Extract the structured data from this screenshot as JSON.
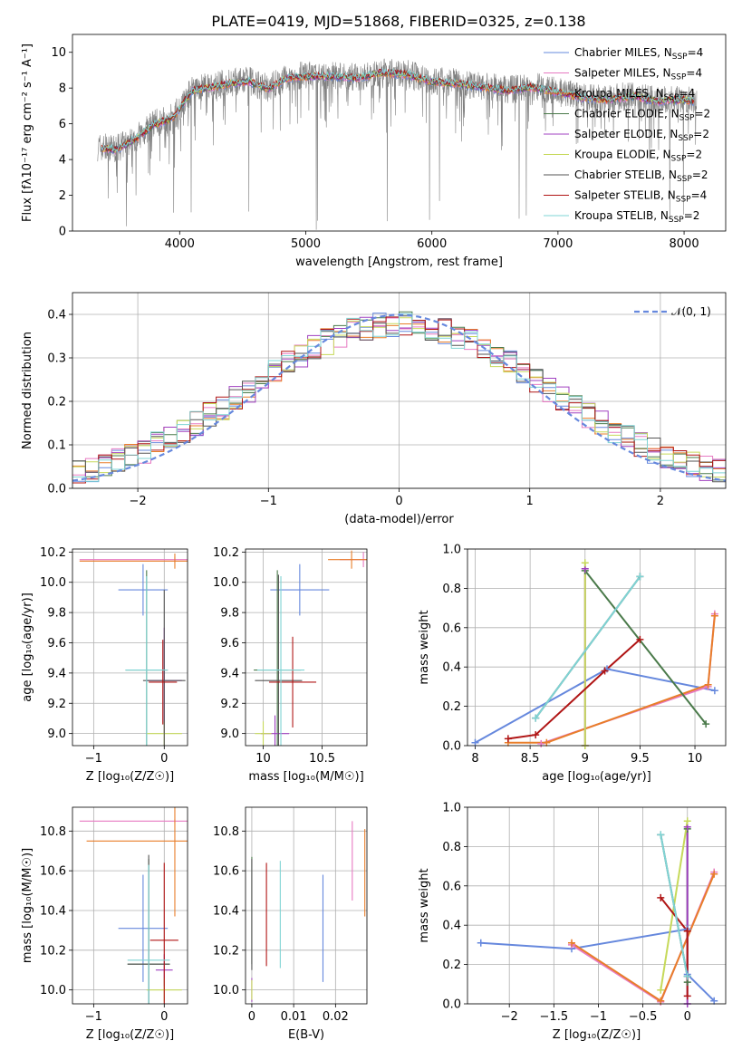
{
  "figure": {
    "title": "PLATE=0419, MJD=51868, FIBERID=0325, z=0.138"
  },
  "legend_entries": [
    {
      "label": "Chabrier MILES, N_SSP=4",
      "color": "#6688dd"
    },
    {
      "label": "Salpeter MILES, N_SSP=4",
      "color": "#e77ac2"
    },
    {
      "label": "Kroupa MILES, N_SSP=4",
      "color": "#e87e2a"
    },
    {
      "label": "Chabrier ELODIE, N_SSP=2",
      "color": "#4a7a4a"
    },
    {
      "label": "Salpeter ELODIE, N_SSP=2",
      "color": "#a040c0"
    },
    {
      "label": "Kroupa ELODIE, N_SSP=2",
      "color": "#c6d95a"
    },
    {
      "label": "Chabrier STELIB, N_SSP=2",
      "color": "#555555"
    },
    {
      "label": "Salpeter STELIB, N_SSP=4",
      "color": "#b01515"
    },
    {
      "label": "Kroupa STELIB, N_SSP=2",
      "color": "#7fd4d4"
    }
  ],
  "chart_data": [
    {
      "id": "spectrum",
      "type": "line",
      "xlabel": "wavelength [Angstrom, rest frame]",
      "ylabel": "Flux [fλ10⁻¹⁷ erg cm⁻² s⁻¹ A⁻¹]",
      "xlim": [
        3150,
        8330
      ],
      "ylim": [
        0,
        11
      ],
      "xticks": [
        4000,
        5000,
        6000,
        7000,
        8000
      ],
      "yticks": [
        0,
        2,
        4,
        6,
        8,
        10
      ],
      "grid": false,
      "legend_position": "top-right",
      "data_color": "#808080",
      "continuum": {
        "x": [
          3350,
          3500,
          3650,
          3800,
          3950,
          4100,
          4250,
          4400,
          4550,
          4700,
          4850,
          5000,
          5200,
          5400,
          5600,
          5800,
          6000,
          6200,
          6400,
          6600,
          6800,
          7000,
          7200,
          7400,
          7600,
          7800,
          8000,
          8100
        ],
        "y": [
          4.7,
          4.6,
          5.2,
          6.0,
          6.4,
          7.9,
          8.1,
          8.3,
          8.4,
          8.0,
          8.6,
          8.7,
          8.7,
          8.6,
          8.9,
          8.8,
          8.4,
          8.3,
          8.1,
          7.9,
          8.1,
          7.8,
          7.5,
          7.4,
          7.6,
          7.3,
          7.4,
          7.3
        ]
      }
    },
    {
      "id": "residuals",
      "type": "histogram",
      "xlabel": "(data-model)/error",
      "ylabel": "Normed distribution",
      "xlim": [
        -2.5,
        2.5
      ],
      "ylim": [
        0,
        0.45
      ],
      "xticks": [
        -2,
        -1,
        0,
        1,
        2
      ],
      "yticks": [
        0.0,
        0.1,
        0.2,
        0.3,
        0.4
      ],
      "grid": true,
      "legend": [
        {
          "label": "𝒩(0, 1)",
          "color": "#6688dd",
          "style": "dashed"
        }
      ],
      "legend_position": "top-right",
      "bin_width": 0.1
    },
    {
      "id": "age_vs_Z",
      "type": "errorbar",
      "xlabel": "Z [log₁₀(Z/Z☉)]",
      "ylabel": "age  [log₁₀(age/yr)]",
      "xlim": [
        -1.3,
        0.33
      ],
      "ylim": [
        8.92,
        10.22
      ],
      "xticks": [
        -1,
        0
      ],
      "yticks": [
        9.0,
        9.2,
        9.4,
        9.6,
        9.8,
        10.0,
        10.2
      ],
      "grid": true,
      "points": [
        {
          "model": 0,
          "x": -0.3,
          "xerr": 0.35,
          "y": 9.95,
          "yerr": 0.17
        },
        {
          "model": 1,
          "x": 0.15,
          "xerr": 1.35,
          "y": 10.15,
          "yerr": 0.02
        },
        {
          "model": 2,
          "x": 0.15,
          "xerr": 1.35,
          "y": 10.14,
          "yerr": 0.05
        },
        {
          "model": 3,
          "x": -0.25,
          "xerr": 0.3,
          "y": 9.42,
          "yerr": 0.66
        },
        {
          "model": 4,
          "x": 0.0,
          "xerr": 0.25,
          "y": 9.35,
          "yerr": 0.35
        },
        {
          "model": 5,
          "x": 0.0,
          "xerr": 0.25,
          "y": 9.0,
          "yerr": 0.08
        },
        {
          "model": 6,
          "x": 0.0,
          "xerr": 0.3,
          "y": 9.35,
          "yerr": 0.6
        },
        {
          "model": 7,
          "x": -0.02,
          "xerr": 0.2,
          "y": 9.34,
          "yerr": 0.28
        },
        {
          "model": 8,
          "x": -0.25,
          "xerr": 0.3,
          "y": 9.42,
          "yerr": 0.62
        }
      ]
    },
    {
      "id": "age_vs_mass",
      "type": "errorbar",
      "xlabel": "mass [log₁₀(M/M☉)]",
      "ylabel": "",
      "xlim": [
        9.85,
        10.88
      ],
      "ylim": [
        8.92,
        10.22
      ],
      "xticks": [
        10.0,
        10.5
      ],
      "yticks": [
        9.0,
        9.2,
        9.4,
        9.6,
        9.8,
        10.0,
        10.2
      ],
      "grid": true,
      "points": [
        {
          "model": 0,
          "x": 10.31,
          "xerr": 0.25,
          "y": 9.95,
          "yerr": 0.17
        },
        {
          "model": 1,
          "x": 10.85,
          "xerr": 0.2,
          "y": 10.15,
          "yerr": 0.05
        },
        {
          "model": 2,
          "x": 10.75,
          "xerr": 0.2,
          "y": 10.15,
          "yerr": 0.06
        },
        {
          "model": 3,
          "x": 10.12,
          "xerr": 0.2,
          "y": 9.42,
          "yerr": 0.66
        },
        {
          "model": 4,
          "x": 10.1,
          "xerr": 0.12,
          "y": 9.0,
          "yerr": 0.12
        },
        {
          "model": 5,
          "x": 10.0,
          "xerr": 0.07,
          "y": 9.0,
          "yerr": 0.08
        },
        {
          "model": 6,
          "x": 10.13,
          "xerr": 0.2,
          "y": 9.35,
          "yerr": 0.7
        },
        {
          "model": 7,
          "x": 10.25,
          "xerr": 0.2,
          "y": 9.34,
          "yerr": 0.3
        },
        {
          "model": 8,
          "x": 10.15,
          "xerr": 0.2,
          "y": 9.42,
          "yerr": 0.62
        }
      ]
    },
    {
      "id": "weight_vs_age",
      "type": "line",
      "xlabel": "age  [log₁₀(age/yr)]",
      "ylabel": "mass weight",
      "xlim": [
        7.93,
        10.28
      ],
      "ylim": [
        0,
        1.0
      ],
      "xticks": [
        8.0,
        8.5,
        9.0,
        9.5,
        10.0
      ],
      "yticks": [
        0.0,
        0.2,
        0.4,
        0.6,
        0.8,
        1.0
      ],
      "grid": true,
      "series": [
        {
          "model": 0,
          "x": [
            8.0,
            9.2,
            10.18
          ],
          "y": [
            0.015,
            0.39,
            0.28
          ]
        },
        {
          "model": 1,
          "x": [
            8.6,
            10.12,
            10.18
          ],
          "y": [
            0.01,
            0.3,
            0.67
          ]
        },
        {
          "model": 2,
          "x": [
            8.3,
            8.65,
            10.12,
            10.18
          ],
          "y": [
            0.015,
            0.015,
            0.31,
            0.66
          ]
        },
        {
          "model": 3,
          "x": [
            9.0,
            10.1
          ],
          "y": [
            0.89,
            0.11
          ]
        },
        {
          "model": 4,
          "x": [
            9.0,
            9.0
          ],
          "y": [
            0.0,
            0.9
          ]
        },
        {
          "model": 5,
          "x": [
            9.0,
            9.0
          ],
          "y": [
            0.0,
            0.93
          ]
        },
        {
          "model": 6,
          "x": [
            8.55,
            9.5
          ],
          "y": [
            0.14,
            0.86
          ]
        },
        {
          "model": 7,
          "x": [
            8.3,
            8.55,
            9.18,
            9.5
          ],
          "y": [
            0.035,
            0.055,
            0.38,
            0.54
          ]
        },
        {
          "model": 8,
          "x": [
            8.55,
            9.5
          ],
          "y": [
            0.14,
            0.86
          ]
        }
      ]
    },
    {
      "id": "mass_vs_Z",
      "type": "errorbar",
      "xlabel": "Z [log₁₀(Z/Z☉)]",
      "ylabel": "mass [log₁₀(M/M☉)]",
      "xlim": [
        -1.3,
        0.33
      ],
      "ylim": [
        9.93,
        10.92
      ],
      "xticks": [
        -1,
        0
      ],
      "yticks": [
        10.0,
        10.2,
        10.4,
        10.6,
        10.8
      ],
      "grid": true,
      "points": [
        {
          "model": 0,
          "x": -0.3,
          "xerr": 0.35,
          "y": 10.31,
          "yerr": 0.27
        },
        {
          "model": 1,
          "x": 0.15,
          "xerr": 1.35,
          "y": 10.85,
          "yerr": 0.01
        },
        {
          "model": 2,
          "x": 0.15,
          "xerr": 1.25,
          "y": 10.75,
          "yerr": 0.38
        },
        {
          "model": 3,
          "x": -0.22,
          "xerr": 0.3,
          "y": 10.13,
          "yerr": 0.53
        },
        {
          "model": 4,
          "x": 0.0,
          "xerr": 0.12,
          "y": 10.1,
          "yerr": 0.08
        },
        {
          "model": 5,
          "x": 0.0,
          "xerr": 0.25,
          "y": 10.0,
          "yerr": 0.06
        },
        {
          "model": 6,
          "x": -0.22,
          "xerr": 0.3,
          "y": 10.13,
          "yerr": 0.55
        },
        {
          "model": 7,
          "x": 0.0,
          "xerr": 0.2,
          "y": 10.25,
          "yerr": 0.39
        },
        {
          "model": 8,
          "x": -0.22,
          "xerr": 0.3,
          "y": 10.15,
          "yerr": 0.48
        }
      ]
    },
    {
      "id": "mass_vs_ebv",
      "type": "errorbar",
      "xlabel": "E(B-V)",
      "ylabel": "",
      "xlim": [
        -0.0015,
        0.0275
      ],
      "ylim": [
        9.93,
        10.92
      ],
      "xticks": [
        0.0,
        0.01,
        0.02
      ],
      "yticks": [
        10.0,
        10.2,
        10.4,
        10.6,
        10.8
      ],
      "grid": true,
      "points": [
        {
          "model": 0,
          "x": 0.017,
          "y": 10.31,
          "yerr": 0.27
        },
        {
          "model": 1,
          "x": 0.024,
          "y": 10.65,
          "yerr": 0.2
        },
        {
          "model": 2,
          "x": 0.027,
          "y": 10.59,
          "yerr": 0.22
        },
        {
          "model": 3,
          "x": 0.0,
          "y": 10.4,
          "yerr": 0.27
        },
        {
          "model": 4,
          "x": 0.0,
          "y": 10.0,
          "yerr": 0.06
        },
        {
          "model": 5,
          "x": 0.0,
          "y": 10.0,
          "yerr": 0.05
        },
        {
          "model": 6,
          "x": 0.0,
          "y": 10.38,
          "yerr": 0.28
        },
        {
          "model": 7,
          "x": 0.0035,
          "y": 10.38,
          "yerr": 0.26
        },
        {
          "model": 8,
          "x": 0.0068,
          "y": 10.38,
          "yerr": 0.27
        }
      ]
    },
    {
      "id": "weight_vs_Z",
      "type": "line",
      "xlabel": "Z [log₁₀(Z/Z☉)]",
      "ylabel": "mass weight",
      "xlim": [
        -2.47,
        0.43
      ],
      "ylim": [
        0,
        1.0
      ],
      "xticks": [
        -2.0,
        -1.5,
        -1.0,
        -0.5,
        0.0
      ],
      "yticks": [
        0.0,
        0.2,
        0.4,
        0.6,
        0.8,
        1.0
      ],
      "grid": true,
      "series": [
        {
          "model": 0,
          "x": [
            -2.32,
            -1.3,
            0.0,
            0.0,
            0.3
          ],
          "y": [
            0.31,
            0.28,
            0.38,
            0.15,
            0.015
          ]
        },
        {
          "model": 1,
          "x": [
            -1.3,
            -0.3,
            0.3
          ],
          "y": [
            0.3,
            0.01,
            0.67
          ]
        },
        {
          "model": 2,
          "x": [
            -1.3,
            -0.3,
            0.3
          ],
          "y": [
            0.31,
            0.015,
            0.66
          ]
        },
        {
          "model": 3,
          "x": [
            0.0,
            0.0
          ],
          "y": [
            0.89,
            0.11
          ]
        },
        {
          "model": 4,
          "x": [
            0.0,
            0.0
          ],
          "y": [
            0.9,
            0.0
          ]
        },
        {
          "model": 5,
          "x": [
            -0.3,
            0.0
          ],
          "y": [
            0.07,
            0.93
          ]
        },
        {
          "model": 6,
          "x": [
            -0.3,
            0.0
          ],
          "y": [
            0.86,
            0.14
          ]
        },
        {
          "model": 7,
          "x": [
            -0.3,
            0.0,
            0.0
          ],
          "y": [
            0.54,
            0.37,
            0.04
          ]
        },
        {
          "model": 8,
          "x": [
            -0.3,
            0.0
          ],
          "y": [
            0.86,
            0.14
          ]
        }
      ]
    }
  ]
}
